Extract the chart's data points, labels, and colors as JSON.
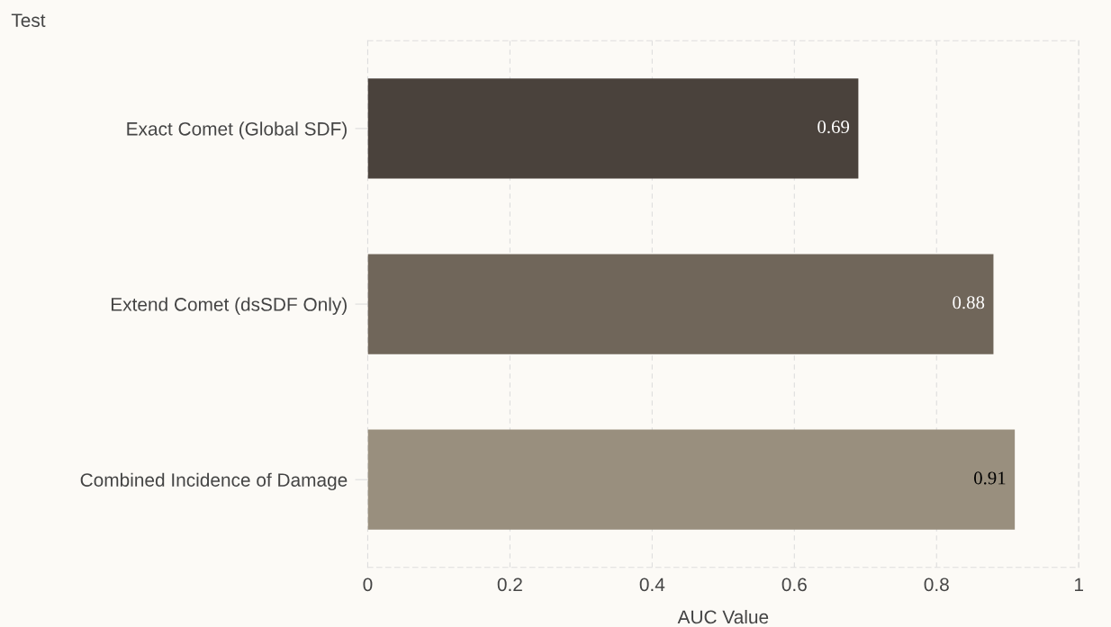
{
  "chart_data": {
    "type": "bar",
    "orientation": "horizontal",
    "title": "Test",
    "xlabel": "AUC Value",
    "categories": [
      "Exact Comet (Global SDF)",
      "Extend Comet (dsSDF Only)",
      "Combined Incidence of Damage"
    ],
    "values": [
      0.69,
      0.88,
      0.91
    ],
    "colors": [
      "#4a423c",
      "#70665a",
      "#998f7e"
    ],
    "xlim": [
      0,
      1
    ],
    "xticks": [
      0,
      0.2,
      0.4,
      0.6,
      0.8,
      1
    ],
    "grid": "x",
    "data_labels": true
  }
}
